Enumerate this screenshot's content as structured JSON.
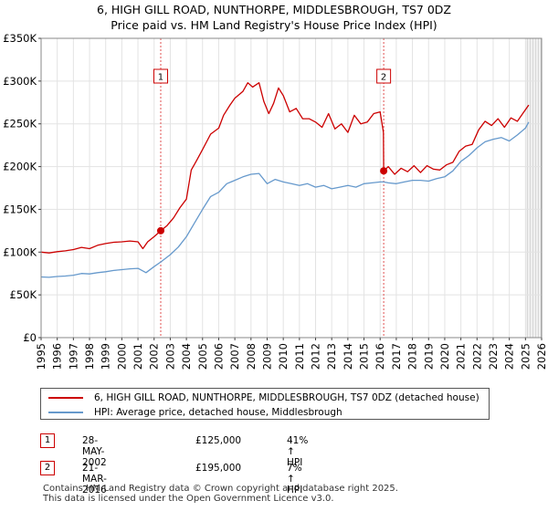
{
  "chart_data": {
    "type": "line",
    "title": "6, HIGH GILL ROAD, NUNTHORPE, MIDDLESBROUGH, TS7 0DZ",
    "subtitle": "Price paid vs. HM Land Registry's House Price Index (HPI)",
    "xlabel": "",
    "ylabel": "",
    "xlim": [
      1995,
      2026
    ],
    "ylim": [
      0,
      350000
    ],
    "x_ticks": [
      "1995",
      "1996",
      "1997",
      "1998",
      "1999",
      "2000",
      "2001",
      "2002",
      "2003",
      "2004",
      "2005",
      "2006",
      "2007",
      "2008",
      "2009",
      "2010",
      "2011",
      "2012",
      "2013",
      "2014",
      "2015",
      "2016",
      "2017",
      "2018",
      "2019",
      "2020",
      "2021",
      "2022",
      "2023",
      "2024",
      "2025",
      "2026"
    ],
    "y_ticks": [
      {
        "value": 0,
        "label": "£0"
      },
      {
        "value": 50000,
        "label": "£50K"
      },
      {
        "value": 100000,
        "label": "£100K"
      },
      {
        "value": 150000,
        "label": "£150K"
      },
      {
        "value": 200000,
        "label": "£200K"
      },
      {
        "value": 250000,
        "label": "£250K"
      },
      {
        "value": 300000,
        "label": "£300K"
      },
      {
        "value": 350000,
        "label": "£350K"
      }
    ],
    "grid": true,
    "shaded_future_from": 2025.0,
    "series": [
      {
        "name": "6, HIGH GILL ROAD, NUNTHORPE, MIDDLESBROUGH, TS7 0DZ (detached house)",
        "color": "#cc0000",
        "points": [
          [
            1995.0,
            100000
          ],
          [
            1995.5,
            99000
          ],
          [
            1996.0,
            100500
          ],
          [
            1996.5,
            101500
          ],
          [
            1997.0,
            103000
          ],
          [
            1997.5,
            105500
          ],
          [
            1998.0,
            104000
          ],
          [
            1998.5,
            108000
          ],
          [
            1999.0,
            110000
          ],
          [
            1999.5,
            111500
          ],
          [
            2000.0,
            112000
          ],
          [
            2000.5,
            113000
          ],
          [
            2001.0,
            112000
          ],
          [
            2001.3,
            104000
          ],
          [
            2001.6,
            112000
          ],
          [
            2002.0,
            118000
          ],
          [
            2002.41,
            125000
          ],
          [
            2002.8,
            131000
          ],
          [
            2003.2,
            140000
          ],
          [
            2003.6,
            152000
          ],
          [
            2004.0,
            162000
          ],
          [
            2004.3,
            196000
          ],
          [
            2004.6,
            206000
          ],
          [
            2005.0,
            220000
          ],
          [
            2005.5,
            238000
          ],
          [
            2006.0,
            245000
          ],
          [
            2006.3,
            260000
          ],
          [
            2006.7,
            272000
          ],
          [
            2007.0,
            280000
          ],
          [
            2007.5,
            288000
          ],
          [
            2007.8,
            298000
          ],
          [
            2008.1,
            293000
          ],
          [
            2008.5,
            298000
          ],
          [
            2008.8,
            276000
          ],
          [
            2009.1,
            262000
          ],
          [
            2009.4,
            274000
          ],
          [
            2009.7,
            292000
          ],
          [
            2010.0,
            283000
          ],
          [
            2010.4,
            264000
          ],
          [
            2010.8,
            268000
          ],
          [
            2011.2,
            256000
          ],
          [
            2011.6,
            256000
          ],
          [
            2012.0,
            252000
          ],
          [
            2012.4,
            246000
          ],
          [
            2012.8,
            262000
          ],
          [
            2013.2,
            244000
          ],
          [
            2013.6,
            250000
          ],
          [
            2014.0,
            240000
          ],
          [
            2014.4,
            260000
          ],
          [
            2014.8,
            250000
          ],
          [
            2015.2,
            252000
          ],
          [
            2015.6,
            262000
          ],
          [
            2016.0,
            264000
          ],
          [
            2016.2,
            240000
          ],
          [
            2016.22,
            195000
          ],
          [
            2016.5,
            200000
          ],
          [
            2016.9,
            191000
          ],
          [
            2017.3,
            198000
          ],
          [
            2017.7,
            194000
          ],
          [
            2018.1,
            201000
          ],
          [
            2018.5,
            193000
          ],
          [
            2018.9,
            201000
          ],
          [
            2019.3,
            197000
          ],
          [
            2019.7,
            196000
          ],
          [
            2020.1,
            202000
          ],
          [
            2020.5,
            205000
          ],
          [
            2020.9,
            218000
          ],
          [
            2021.3,
            224000
          ],
          [
            2021.7,
            226000
          ],
          [
            2022.1,
            243000
          ],
          [
            2022.5,
            253000
          ],
          [
            2022.9,
            248000
          ],
          [
            2023.3,
            256000
          ],
          [
            2023.7,
            246000
          ],
          [
            2024.1,
            257000
          ],
          [
            2024.5,
            253000
          ],
          [
            2024.9,
            264000
          ],
          [
            2025.2,
            272000
          ]
        ]
      },
      {
        "name": "HPI: Average price, detached house, Middlesbrough",
        "color": "#6699cc",
        "points": [
          [
            1995.0,
            71000
          ],
          [
            1995.5,
            70500
          ],
          [
            1996.0,
            71500
          ],
          [
            1996.5,
            72000
          ],
          [
            1997.0,
            73000
          ],
          [
            1997.5,
            75000
          ],
          [
            1998.0,
            74500
          ],
          [
            1998.5,
            76000
          ],
          [
            1999.0,
            77000
          ],
          [
            1999.5,
            78500
          ],
          [
            2000.0,
            79500
          ],
          [
            2000.5,
            80500
          ],
          [
            2001.0,
            81000
          ],
          [
            2001.5,
            76000
          ],
          [
            2002.0,
            83000
          ],
          [
            2002.41,
            88500
          ],
          [
            2003.0,
            97000
          ],
          [
            2003.5,
            106000
          ],
          [
            2004.0,
            118000
          ],
          [
            2004.5,
            134000
          ],
          [
            2005.0,
            150000
          ],
          [
            2005.5,
            165000
          ],
          [
            2006.0,
            170000
          ],
          [
            2006.5,
            180000
          ],
          [
            2007.0,
            184000
          ],
          [
            2007.5,
            188000
          ],
          [
            2008.0,
            191000
          ],
          [
            2008.5,
            192000
          ],
          [
            2009.0,
            180000
          ],
          [
            2009.5,
            185000
          ],
          [
            2010.0,
            182000
          ],
          [
            2010.5,
            180000
          ],
          [
            2011.0,
            178000
          ],
          [
            2011.5,
            180000
          ],
          [
            2012.0,
            176000
          ],
          [
            2012.5,
            178000
          ],
          [
            2013.0,
            174000
          ],
          [
            2013.5,
            176000
          ],
          [
            2014.0,
            178000
          ],
          [
            2014.5,
            176000
          ],
          [
            2015.0,
            180000
          ],
          [
            2015.5,
            181000
          ],
          [
            2016.0,
            182000
          ],
          [
            2016.22,
            182000
          ],
          [
            2016.5,
            181000
          ],
          [
            2017.0,
            180000
          ],
          [
            2017.5,
            182000
          ],
          [
            2018.0,
            184000
          ],
          [
            2018.5,
            184000
          ],
          [
            2019.0,
            183000
          ],
          [
            2019.5,
            186000
          ],
          [
            2020.0,
            188000
          ],
          [
            2020.5,
            195000
          ],
          [
            2021.0,
            206000
          ],
          [
            2021.5,
            213000
          ],
          [
            2022.0,
            222000
          ],
          [
            2022.5,
            229000
          ],
          [
            2023.0,
            232000
          ],
          [
            2023.5,
            234000
          ],
          [
            2024.0,
            230000
          ],
          [
            2024.5,
            237000
          ],
          [
            2025.0,
            245000
          ],
          [
            2025.2,
            252000
          ]
        ]
      }
    ],
    "sales": [
      {
        "label": "1",
        "x": 2002.41,
        "price": 125000
      },
      {
        "label": "2",
        "x": 2016.22,
        "price": 195000
      }
    ]
  },
  "legend": {
    "property_label": "6, HIGH GILL ROAD, NUNTHORPE, MIDDLESBROUGH, TS7 0DZ (detached house)",
    "hpi_label": "HPI: Average price, detached house, Middlesbrough",
    "property_color": "#cc0000",
    "hpi_color": "#6699cc"
  },
  "sales_table": [
    {
      "num": "1",
      "date": "28-MAY-2002",
      "price": "£125,000",
      "hpi": "41% ↑ HPI"
    },
    {
      "num": "2",
      "date": "21-MAR-2016",
      "price": "£195,000",
      "hpi": "7% ↑ HPI"
    }
  ],
  "footer": {
    "line1": "Contains HM Land Registry data © Crown copyright and database right 2025.",
    "line2": "This data is licensed under the Open Government Licence v3.0."
  }
}
